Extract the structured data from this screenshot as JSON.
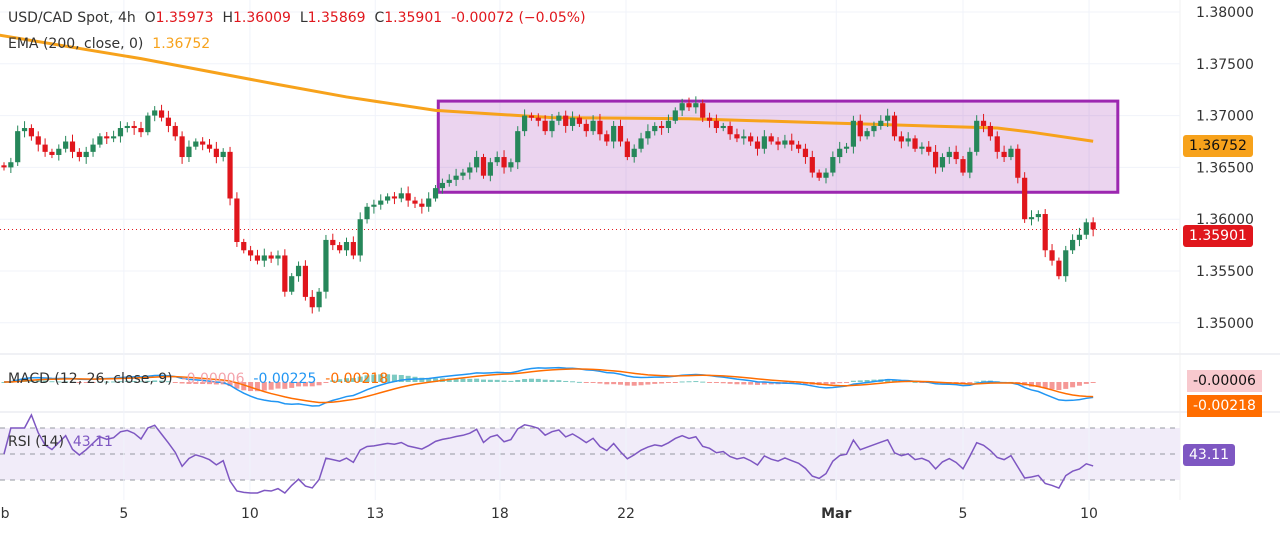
{
  "header": {
    "symbol": "USD/CAD Spot, 4h",
    "o_label": "O",
    "o": "1.35973",
    "h_label": "H",
    "h": "1.36009",
    "l_label": "L",
    "l": "1.35869",
    "c_label": "C",
    "c": "1.35901",
    "change": "-0.00072 (−0.05%)"
  },
  "ema_legend": {
    "label": "EMA (200, close, 0)",
    "value": "1.36752"
  },
  "macd_legend": {
    "label": "MACD (12, 26, close, 9)",
    "hist": "-0.00006",
    "macd": "-0.00225",
    "signal": "-0.00218"
  },
  "rsi_legend": {
    "label": "RSI (14)",
    "value": "43.11"
  },
  "badges": {
    "ema": "1.36752",
    "price": "1.35901",
    "macd_hist": "-0.00006",
    "macd_signal": "-0.00218",
    "rsi": "43.11"
  },
  "colors": {
    "up": "#26875a",
    "down": "#e0161c",
    "ema": "#f7a21b",
    "rect": "#9c27b0",
    "macd": "#2196f3",
    "signal": "#ff6d00",
    "rsi": "#7e57c2"
  },
  "chart_data": {
    "type": "candlestick",
    "price_axis": {
      "ticks": [
        "1.38000",
        "1.37500",
        "1.37000",
        "1.36500",
        "1.36000",
        "1.35500",
        "1.35000"
      ],
      "range": [
        1.349,
        1.3805
      ]
    },
    "time_axis": {
      "labels": [
        {
          "text": "Feb",
          "index": -1
        },
        {
          "text": "5",
          "index": 17.5
        },
        {
          "text": "10",
          "index": 35.9
        },
        {
          "text": "13",
          "index": 54.2
        },
        {
          "text": "18",
          "index": 72.4
        },
        {
          "text": "22",
          "index": 90.8
        },
        {
          "text": "Mar",
          "index": 121.5
        },
        {
          "text": "5",
          "index": 140
        },
        {
          "text": "10",
          "index": 158.4
        }
      ]
    },
    "first_open": 1.3652,
    "closes": [
      1.365,
      1.3655,
      1.3685,
      1.3688,
      1.368,
      1.3672,
      1.3665,
      1.3662,
      1.3668,
      1.3675,
      1.3665,
      1.366,
      1.3665,
      1.3672,
      1.368,
      1.3678,
      1.368,
      1.3688,
      1.369,
      1.3688,
      1.3684,
      1.37,
      1.3705,
      1.3698,
      1.369,
      1.368,
      1.366,
      1.367,
      1.3675,
      1.3672,
      1.3668,
      1.366,
      1.3665,
      1.362,
      1.3578,
      1.357,
      1.3565,
      1.356,
      1.3565,
      1.3562,
      1.3565,
      1.353,
      1.3545,
      1.3555,
      1.3525,
      1.3515,
      1.353,
      1.358,
      1.3575,
      1.357,
      1.3578,
      1.3565,
      1.36,
      1.3612,
      1.3614,
      1.3618,
      1.3622,
      1.362,
      1.3625,
      1.3618,
      1.3615,
      1.3612,
      1.362,
      1.363,
      1.3635,
      1.3638,
      1.3642,
      1.3645,
      1.365,
      1.366,
      1.3642,
      1.3655,
      1.366,
      1.365,
      1.3655,
      1.3685,
      1.37,
      1.3698,
      1.3695,
      1.3685,
      1.3695,
      1.37,
      1.369,
      1.3698,
      1.3692,
      1.3685,
      1.3695,
      1.3682,
      1.3675,
      1.369,
      1.3675,
      1.366,
      1.3668,
      1.3678,
      1.3685,
      1.369,
      1.3688,
      1.3695,
      1.3705,
      1.3712,
      1.3708,
      1.3712,
      1.3698,
      1.3695,
      1.3688,
      1.369,
      1.3682,
      1.3678,
      1.368,
      1.3675,
      1.3668,
      1.368,
      1.3675,
      1.3672,
      1.3676,
      1.3672,
      1.3668,
      1.366,
      1.3645,
      1.364,
      1.3645,
      1.366,
      1.3668,
      1.367,
      1.3695,
      1.368,
      1.3685,
      1.369,
      1.3695,
      1.37,
      1.368,
      1.3675,
      1.3678,
      1.3668,
      1.367,
      1.3665,
      1.365,
      1.366,
      1.3665,
      1.3658,
      1.3645,
      1.3665,
      1.3695,
      1.369,
      1.368,
      1.3665,
      1.366,
      1.3668,
      1.364,
      1.36,
      1.3602,
      1.3605,
      1.357,
      1.356,
      1.3545,
      1.357,
      1.358,
      1.3585,
      1.3597,
      1.35901
    ],
    "ema200": [
      [
        -1,
        1.3778
      ],
      [
        20,
        1.3755
      ],
      [
        40,
        1.373
      ],
      [
        50,
        1.3718
      ],
      [
        63,
        1.3705
      ],
      [
        80,
        1.3698
      ],
      [
        100,
        1.3697
      ],
      [
        120,
        1.3693
      ],
      [
        135,
        1.369
      ],
      [
        145,
        1.3688
      ],
      [
        150,
        1.3684
      ],
      [
        159,
        1.36752
      ]
    ],
    "range_box": {
      "from_index": 63.4,
      "to_index": 162.6,
      "top": 1.3714,
      "bottom": 1.3626
    },
    "last_price": 1.35901,
    "rsi_levels": [
      70,
      50,
      30
    ]
  }
}
